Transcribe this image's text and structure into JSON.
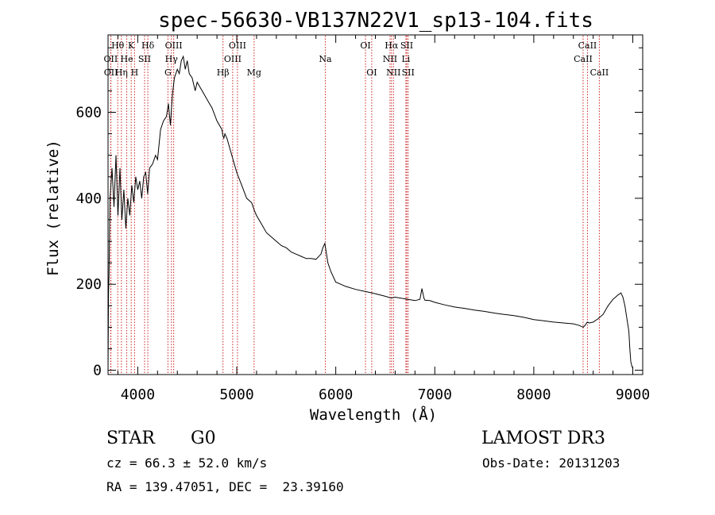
{
  "chart_data": {
    "type": "line",
    "title": "spec-56630-VB137N22V1_sp13-104.fits",
    "xlabel": "Wavelength (Å)",
    "ylabel": "Flux (relative)",
    "xlim": [
      3700,
      9100
    ],
    "ylim": [
      -10,
      780
    ],
    "xticks": [
      4000,
      5000,
      6000,
      7000,
      8000,
      9000
    ],
    "yticks": [
      0,
      200,
      400,
      600
    ],
    "series": [
      {
        "name": "flux",
        "color": "#000000",
        "x": [
          3700,
          3705,
          3710,
          3720,
          3740,
          3760,
          3780,
          3800,
          3820,
          3840,
          3860,
          3880,
          3900,
          3920,
          3940,
          3960,
          3980,
          4000,
          4020,
          4040,
          4060,
          4080,
          4100,
          4120,
          4150,
          4180,
          4200,
          4230,
          4260,
          4290,
          4310,
          4330,
          4350,
          4370,
          4400,
          4420,
          4440,
          4460,
          4480,
          4500,
          4520,
          4550,
          4580,
          4600,
          4650,
          4700,
          4750,
          4800,
          4850,
          4860,
          4870,
          4880,
          4900,
          4950,
          5000,
          5050,
          5100,
          5150,
          5180,
          5200,
          5250,
          5300,
          5350,
          5400,
          5450,
          5500,
          5550,
          5600,
          5650,
          5700,
          5750,
          5800,
          5850,
          5870,
          5890,
          5900,
          5920,
          5950,
          6000,
          6050,
          6100,
          6200,
          6300,
          6400,
          6500,
          6560,
          6600,
          6700,
          6800,
          6850,
          6870,
          6890,
          6900,
          6950,
          7000,
          7100,
          7200,
          7300,
          7400,
          7500,
          7600,
          7700,
          7800,
          7900,
          8000,
          8100,
          8200,
          8300,
          8400,
          8450,
          8500,
          8520,
          8540,
          8560,
          8600,
          8650,
          8700,
          8750,
          8800,
          8850,
          8880,
          8900,
          8920,
          8940,
          8960,
          8970,
          8980,
          8990,
          9000
        ],
        "values": [
          0,
          180,
          220,
          400,
          470,
          380,
          500,
          360,
          470,
          350,
          420,
          330,
          400,
          360,
          430,
          390,
          450,
          420,
          440,
          400,
          450,
          460,
          410,
          470,
          480,
          500,
          490,
          560,
          580,
          590,
          620,
          570,
          640,
          680,
          700,
          690,
          720,
          730,
          700,
          720,
          690,
          680,
          650,
          670,
          650,
          630,
          610,
          580,
          560,
          545,
          540,
          550,
          540,
          500,
          460,
          430,
          400,
          390,
          370,
          360,
          340,
          320,
          310,
          300,
          290,
          285,
          275,
          270,
          265,
          260,
          260,
          258,
          270,
          285,
          295,
          280,
          250,
          230,
          205,
          200,
          195,
          188,
          183,
          178,
          172,
          168,
          170,
          166,
          162,
          165,
          190,
          168,
          163,
          162,
          158,
          152,
          147,
          144,
          140,
          137,
          133,
          130,
          127,
          123,
          118,
          115,
          112,
          110,
          108,
          105,
          100,
          105,
          112,
          110,
          112,
          120,
          130,
          150,
          165,
          175,
          180,
          170,
          150,
          120,
          90,
          50,
          20,
          10,
          5
        ]
      }
    ],
    "line_markers": [
      {
        "label": "Hθ",
        "wavelength": 3798,
        "row": 1
      },
      {
        "label": "OII",
        "wavelength": 3727,
        "row": 2
      },
      {
        "label": "OII",
        "wavelength": 3729,
        "row": 3
      },
      {
        "label": "He",
        "wavelength": 3889,
        "row": 2
      },
      {
        "label": "Hη",
        "wavelength": 3835,
        "row": 3
      },
      {
        "label": "K",
        "wavelength": 3934,
        "row": 1
      },
      {
        "label": "H",
        "wavelength": 3968,
        "row": 3
      },
      {
        "label": "SII",
        "wavelength": 4069,
        "row": 2
      },
      {
        "label": "Hδ",
        "wavelength": 4102,
        "row": 1
      },
      {
        "label": "OIII",
        "wavelength": 4363,
        "row": 1
      },
      {
        "label": "Hγ",
        "wavelength": 4340,
        "row": 2
      },
      {
        "label": "G",
        "wavelength": 4305,
        "row": 3
      },
      {
        "label": "Hβ",
        "wavelength": 4861,
        "row": 3
      },
      {
        "label": "OIII",
        "wavelength": 5007,
        "row": 1
      },
      {
        "label": "OIII",
        "wavelength": 4959,
        "row": 2
      },
      {
        "label": "Mg",
        "wavelength": 5175,
        "row": 3
      },
      {
        "label": "Na",
        "wavelength": 5894,
        "row": 2
      },
      {
        "label": "OI",
        "wavelength": 6300,
        "row": 1
      },
      {
        "label": "OI",
        "wavelength": 6363,
        "row": 3
      },
      {
        "label": "Hα",
        "wavelength": 6563,
        "row": 1
      },
      {
        "label": "NII",
        "wavelength": 6548,
        "row": 2
      },
      {
        "label": "NII",
        "wavelength": 6583,
        "row": 3
      },
      {
        "label": "SII",
        "wavelength": 6717,
        "row": 1
      },
      {
        "label": "Li",
        "wavelength": 6708,
        "row": 2
      },
      {
        "label": "SII",
        "wavelength": 6731,
        "row": 3
      },
      {
        "label": "CaII",
        "wavelength": 8542,
        "row": 1
      },
      {
        "label": "CaII",
        "wavelength": 8498,
        "row": 2
      },
      {
        "label": "CaII",
        "wavelength": 8662,
        "row": 3
      }
    ],
    "marker_color": "#cc2222"
  },
  "info": {
    "class_label": "STAR",
    "subclass": "G0",
    "survey": "LAMOST DR3",
    "redshift_line": "cz = 66.3 ± 52.0 km/s",
    "obs_date_line": "Obs-Date: 20131203",
    "coords_line": "RA = 139.47051, DEC =  23.39160"
  }
}
